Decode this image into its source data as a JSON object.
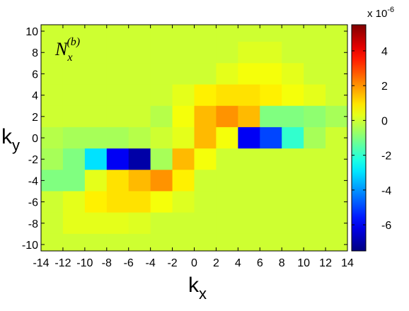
{
  "chart_data": {
    "type": "heatmap",
    "annotation": {
      "base": "N",
      "subscript": "x",
      "superscript": "(b)"
    },
    "x_label": {
      "base": "k",
      "subscript": "x"
    },
    "y_label": {
      "base": "k",
      "subscript": "y"
    },
    "colorbar_label": {
      "base": "x 10",
      "exponent": "-6"
    },
    "colormap": "jet",
    "x": [
      -13,
      -11,
      -9,
      -7,
      -5,
      -3,
      -1,
      1,
      3,
      5,
      7,
      9,
      11,
      13
    ],
    "y": [
      10,
      8,
      6,
      4,
      2,
      0,
      -2,
      -4,
      -6,
      -8,
      -10
    ],
    "z": [
      [
        0,
        0,
        0,
        0,
        0,
        0,
        0,
        0,
        0,
        0,
        0,
        0,
        0,
        0
      ],
      [
        0,
        0,
        0,
        0,
        0,
        0,
        0,
        0,
        0,
        0.2,
        0.2,
        0,
        0,
        0
      ],
      [
        0,
        0,
        0,
        0,
        0,
        0,
        0,
        0,
        0.3,
        0.5,
        0.5,
        0.3,
        0,
        0
      ],
      [
        0,
        0,
        0,
        0,
        0,
        0,
        0.3,
        0.8,
        1,
        1,
        0.8,
        0.5,
        0.3,
        0
      ],
      [
        0,
        0,
        0,
        0,
        0,
        -0.3,
        0.5,
        1.5,
        2,
        1.5,
        -1,
        -1,
        -0.8,
        -0.5
      ],
      [
        -0.3,
        -0.5,
        -0.5,
        -0.5,
        -0.3,
        0,
        0.3,
        1.5,
        0.5,
        -6,
        -5,
        -2,
        -0.5,
        0
      ],
      [
        -0.5,
        -1,
        -3,
        -6,
        -7,
        -0.5,
        1.5,
        0.5,
        0,
        0,
        0,
        0,
        0,
        0
      ],
      [
        -1,
        -1,
        0.3,
        1,
        1.5,
        2,
        0.8,
        0,
        0,
        0,
        0,
        0,
        0,
        0
      ],
      [
        0,
        0.3,
        0.8,
        1,
        1,
        0.5,
        0.2,
        0,
        0,
        0,
        0,
        0,
        0,
        0
      ],
      [
        0,
        0.3,
        0.3,
        0.3,
        0.2,
        0,
        0,
        0,
        0,
        0,
        0,
        0,
        0,
        0
      ],
      [
        0,
        0,
        0,
        0,
        0,
        0,
        0,
        0,
        0,
        0,
        0,
        0,
        0,
        0
      ]
    ],
    "xlim": [
      -14,
      14
    ],
    "ylim": [
      -10.6,
      10.6
    ],
    "zlim": [
      -7.5,
      5.5
    ],
    "xticks": [
      -14,
      -12,
      -10,
      -8,
      -6,
      -4,
      -2,
      0,
      2,
      4,
      6,
      8,
      10,
      12,
      14
    ],
    "yticks": [
      -10,
      -8,
      -6,
      -4,
      -2,
      0,
      2,
      4,
      6,
      8,
      10
    ],
    "zticks": [
      -6,
      -4,
      -2,
      0,
      2,
      4
    ]
  }
}
